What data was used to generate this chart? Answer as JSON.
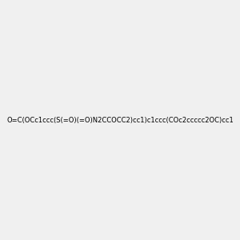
{
  "smiles": "O=C(OCc1ccc(S(=O)(=O)N2CCOCC2)cc1)c1ccc(COc2ccccc2OC)cc1",
  "title": "",
  "figsize": [
    3.0,
    3.0
  ],
  "dpi": 100,
  "background_color": "#f0f0f0",
  "atom_colors": {
    "O": "#ff0000",
    "N": "#0000ff",
    "S": "#ffff00",
    "C": "#000000"
  }
}
